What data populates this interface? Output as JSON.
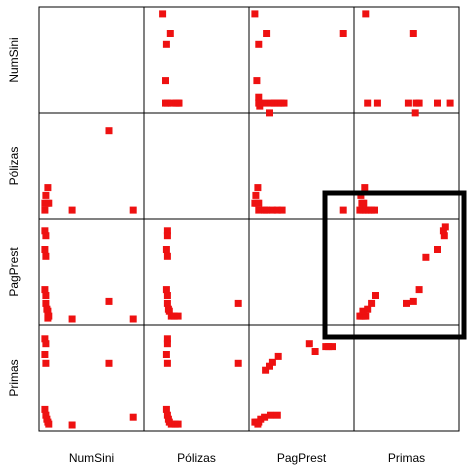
{
  "chart_data": {
    "type": "scatter",
    "chart_kind": "scatterplot-matrix",
    "variables": [
      "NumSini",
      "Pólizas",
      "PagPrest",
      "Primas"
    ],
    "grid": true,
    "point_color": "#ee1111",
    "highlight": {
      "row": "PagPrest",
      "col": "Primas",
      "color": "#000000"
    },
    "panels": [
      {
        "row": "NumSini",
        "col": "Pólizas",
        "points": [
          [
            0.15,
            0.97
          ],
          [
            0.23,
            0.77
          ],
          [
            0.19,
            0.66
          ],
          [
            0.18,
            0.29
          ],
          [
            0.18,
            0.06
          ],
          [
            0.2,
            0.06
          ],
          [
            0.24,
            0.06
          ],
          [
            0.29,
            0.06
          ],
          [
            0.31,
            0.06
          ],
          [
            0.32,
            0.06
          ]
        ]
      },
      {
        "row": "NumSini",
        "col": "PagPrest",
        "points": [
          [
            0.02,
            0.97
          ],
          [
            0.93,
            0.77
          ],
          [
            0.14,
            0.77
          ],
          [
            0.06,
            0.66
          ],
          [
            0.04,
            0.29
          ],
          [
            0.06,
            0.06
          ],
          [
            0.12,
            0.06
          ],
          [
            0.07,
            0.03
          ],
          [
            0.06,
            0.12
          ],
          [
            0.19,
            0.06
          ],
          [
            0.22,
            0.06
          ],
          [
            0.26,
            0.06
          ],
          [
            0.29,
            0.06
          ],
          [
            0.32,
            0.06
          ],
          [
            0.17,
            -0.04
          ]
        ]
      },
      {
        "row": "NumSini",
        "col": "Primas",
        "points": [
          [
            0.08,
            0.97
          ],
          [
            0.57,
            0.77
          ],
          [
            0.2,
            0.06
          ],
          [
            0.1,
            0.06
          ],
          [
            0.52,
            0.06
          ],
          [
            0.63,
            0.06
          ],
          [
            0.6,
            0.06
          ],
          [
            0.82,
            0.06
          ],
          [
            0.95,
            0.06
          ],
          [
            0.59,
            -0.04
          ]
        ]
      },
      {
        "row": "Pólizas",
        "col": "NumSini",
        "points": [
          [
            0.02,
            0.12
          ],
          [
            0.04,
            0.12
          ],
          [
            0.06,
            0.12
          ],
          [
            0.03,
            0.2
          ],
          [
            0.05,
            0.28
          ],
          [
            0.02,
            0.05
          ],
          [
            0.3,
            0.05
          ],
          [
            0.93,
            0.05
          ],
          [
            0.68,
            0.86
          ]
        ]
      },
      {
        "row": "Pólizas",
        "col": "PagPrest",
        "points": [
          [
            0.02,
            0.12
          ],
          [
            0.04,
            0.12
          ],
          [
            0.06,
            0.12
          ],
          [
            0.03,
            0.2
          ],
          [
            0.05,
            0.28
          ],
          [
            0.06,
            0.05
          ],
          [
            0.12,
            0.05
          ],
          [
            0.2,
            0.05
          ],
          [
            0.25,
            0.05
          ],
          [
            0.3,
            0.05
          ],
          [
            0.93,
            0.05
          ],
          [
            0.14,
            0.05
          ]
        ]
      },
      {
        "row": "Pólizas",
        "col": "Primas",
        "points": [
          [
            0.02,
            0.05
          ],
          [
            0.05,
            0.05
          ],
          [
            0.08,
            0.05
          ],
          [
            0.11,
            0.05
          ],
          [
            0.14,
            0.05
          ],
          [
            0.17,
            0.05
          ],
          [
            0.04,
            0.12
          ],
          [
            0.06,
            0.12
          ],
          [
            0.03,
            0.2
          ],
          [
            0.07,
            0.28
          ]
        ]
      },
      {
        "row": "PagPrest",
        "col": "NumSini",
        "points": [
          [
            0.02,
            0.92
          ],
          [
            0.03,
            0.87
          ],
          [
            0.02,
            0.73
          ],
          [
            0.03,
            0.66
          ],
          [
            0.02,
            0.32
          ],
          [
            0.03,
            0.26
          ],
          [
            0.03,
            0.18
          ],
          [
            0.04,
            0.12
          ],
          [
            0.05,
            0.1
          ],
          [
            0.06,
            0.05
          ],
          [
            0.05,
            0.03
          ],
          [
            0.3,
            0.02
          ],
          [
            0.68,
            0.2
          ],
          [
            0.93,
            0.02
          ]
        ]
      },
      {
        "row": "PagPrest",
        "col": "Pólizas",
        "points": [
          [
            0.2,
            0.92
          ],
          [
            0.2,
            0.87
          ],
          [
            0.19,
            0.73
          ],
          [
            0.2,
            0.66
          ],
          [
            0.19,
            0.32
          ],
          [
            0.2,
            0.26
          ],
          [
            0.2,
            0.18
          ],
          [
            0.21,
            0.12
          ],
          [
            0.22,
            0.1
          ],
          [
            0.24,
            0.05
          ],
          [
            0.27,
            0.05
          ],
          [
            0.31,
            0.05
          ],
          [
            0.93,
            0.18
          ]
        ]
      },
      {
        "row": "PagPrest",
        "col": "Primas",
        "points": [
          [
            0.02,
            0.05
          ],
          [
            0.04,
            0.05
          ],
          [
            0.06,
            0.05
          ],
          [
            0.08,
            0.05
          ],
          [
            0.05,
            0.1
          ],
          [
            0.1,
            0.12
          ],
          [
            0.14,
            0.18
          ],
          [
            0.18,
            0.26
          ],
          [
            0.5,
            0.18
          ],
          [
            0.57,
            0.2
          ],
          [
            0.63,
            0.32
          ],
          [
            0.7,
            0.65
          ],
          [
            0.82,
            0.73
          ],
          [
            0.88,
            0.92
          ],
          [
            0.89,
            0.87
          ],
          [
            0.9,
            0.96
          ]
        ]
      },
      {
        "row": "Primas",
        "col": "NumSini",
        "points": [
          [
            0.02,
            0.9
          ],
          [
            0.03,
            0.85
          ],
          [
            0.02,
            0.74
          ],
          [
            0.03,
            0.65
          ],
          [
            0.02,
            0.18
          ],
          [
            0.03,
            0.12
          ],
          [
            0.04,
            0.08
          ],
          [
            0.05,
            0.05
          ],
          [
            0.06,
            0.03
          ],
          [
            0.3,
            0.02
          ],
          [
            0.68,
            0.65
          ],
          [
            0.93,
            0.1
          ]
        ]
      },
      {
        "row": "Primas",
        "col": "Pólizas",
        "points": [
          [
            0.2,
            0.9
          ],
          [
            0.2,
            0.85
          ],
          [
            0.19,
            0.74
          ],
          [
            0.2,
            0.65
          ],
          [
            0.19,
            0.18
          ],
          [
            0.2,
            0.12
          ],
          [
            0.21,
            0.08
          ],
          [
            0.22,
            0.05
          ],
          [
            0.24,
            0.03
          ],
          [
            0.28,
            0.03
          ],
          [
            0.31,
            0.03
          ],
          [
            0.93,
            0.65
          ]
        ]
      },
      {
        "row": "Primas",
        "col": "PagPrest",
        "points": [
          [
            0.02,
            0.05
          ],
          [
            0.04,
            0.05
          ],
          [
            0.06,
            0.05
          ],
          [
            0.08,
            0.08
          ],
          [
            0.05,
            0.03
          ],
          [
            0.12,
            0.1
          ],
          [
            0.18,
            0.12
          ],
          [
            0.25,
            0.12
          ],
          [
            0.13,
            0.58
          ],
          [
            0.17,
            0.62
          ],
          [
            0.2,
            0.66
          ],
          [
            0.26,
            0.72
          ],
          [
            0.58,
            0.85
          ],
          [
            0.64,
            0.77
          ],
          [
            0.75,
            0.82
          ],
          [
            0.78,
            0.82
          ],
          [
            0.82,
            0.82
          ]
        ]
      }
    ]
  }
}
